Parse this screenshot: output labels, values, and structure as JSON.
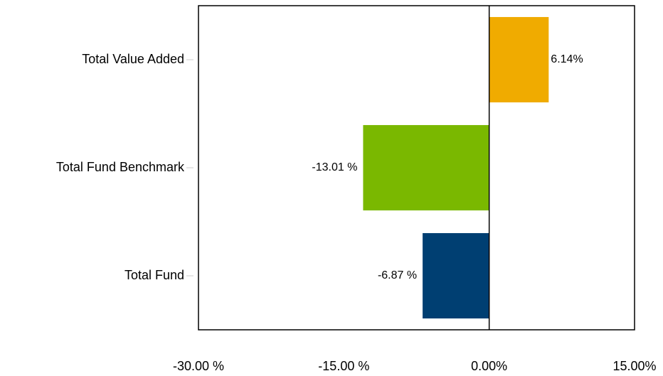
{
  "chart_data": {
    "type": "barh",
    "categories": [
      "Total Value Added",
      "Total Fund Benchmark",
      "Total Fund"
    ],
    "values": [
      6.14,
      -13.01,
      -6.87
    ],
    "value_labels": [
      "6.14%",
      "-13.01 %",
      "-6.87 %"
    ],
    "colors": [
      "#f0ab00",
      "#7ab800",
      "#003f72"
    ],
    "xlim": [
      -30,
      15
    ],
    "xticks": [
      {
        "value": -30,
        "label": "-30.00 %"
      },
      {
        "value": -15,
        "label": "-15.00 %"
      },
      {
        "value": 0,
        "label": "0.00%"
      },
      {
        "value": 15,
        "label": "15.00%"
      }
    ],
    "grid": false
  }
}
